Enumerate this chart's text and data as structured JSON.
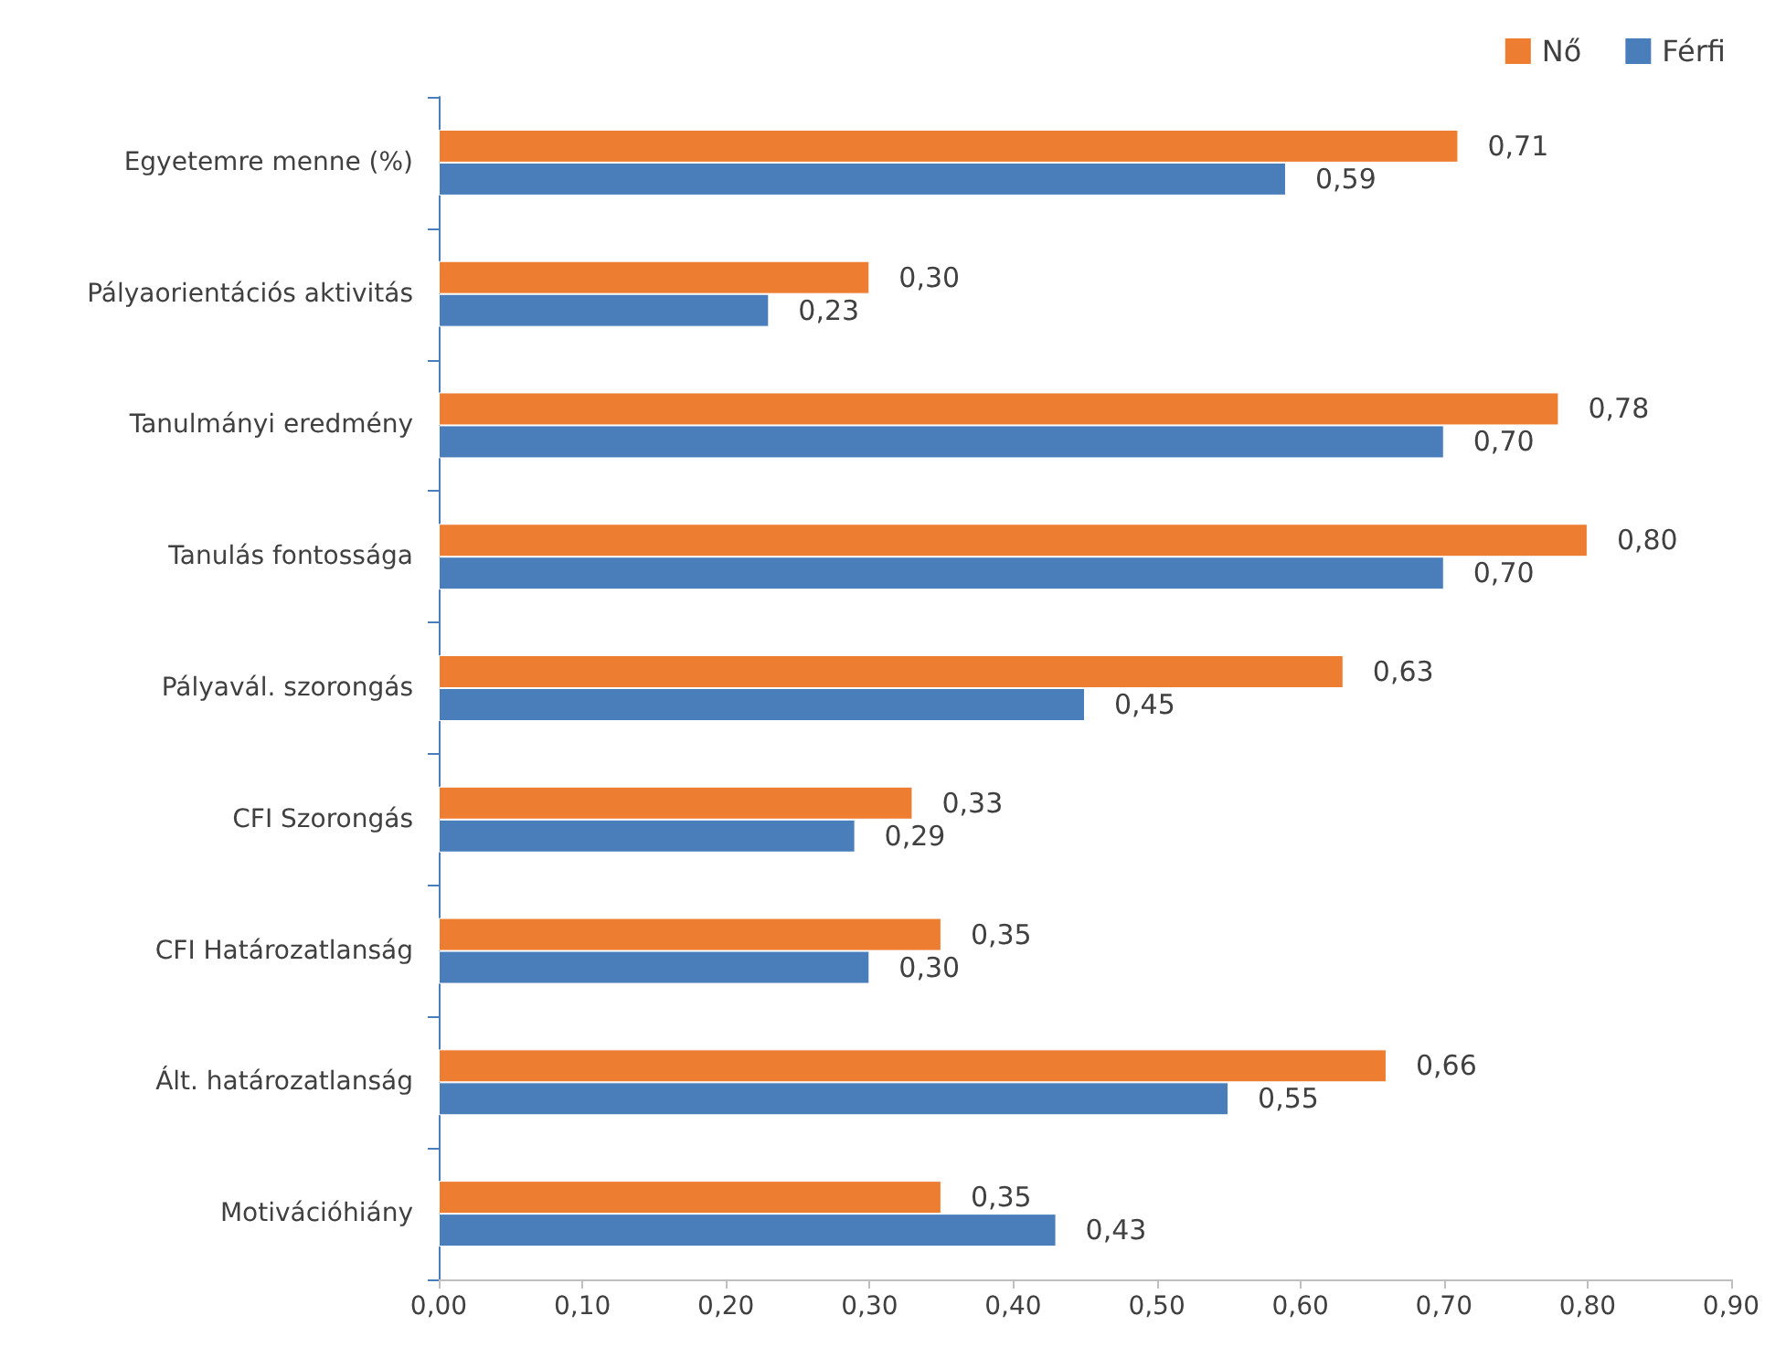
{
  "chart_data": {
    "type": "bar",
    "orientation": "horizontal",
    "categories": [
      "Egyetemre menne (%)",
      "Pályaorientációs aktivitás",
      "Tanulmányi eredmény",
      "Tanulás fontossága",
      "Pályavál. szorongás",
      "CFI Szorongás",
      "CFI Határozatlanság",
      "Ált. határozatlanság",
      "Motivációhiány"
    ],
    "series": [
      {
        "name": "Nő",
        "color": "#ed7d31",
        "values": [
          0.71,
          0.3,
          0.78,
          0.8,
          0.63,
          0.33,
          0.35,
          0.66,
          0.35
        ],
        "value_labels": [
          "0,71",
          "0,30",
          "0,78",
          "0,80",
          "0,63",
          "0,33",
          "0,35",
          "0,66",
          "0,35"
        ]
      },
      {
        "name": "Férfi",
        "color": "#4a7ebb",
        "values": [
          0.59,
          0.23,
          0.7,
          0.7,
          0.45,
          0.29,
          0.3,
          0.55,
          0.43
        ],
        "value_labels": [
          "0,59",
          "0,23",
          "0,70",
          "0,70",
          "0,45",
          "0,29",
          "0,30",
          "0,55",
          "0,43"
        ]
      }
    ],
    "xlim": [
      0,
      0.9
    ],
    "xticks": [
      {
        "value": 0,
        "label": "0,00"
      },
      {
        "value": 0.1,
        "label": "0,10"
      },
      {
        "value": 0.2,
        "label": "0,20"
      },
      {
        "value": 0.3,
        "label": "0,30"
      },
      {
        "value": 0.4,
        "label": "0,40"
      },
      {
        "value": 0.5,
        "label": "0,50"
      },
      {
        "value": 0.6,
        "label": "0,60"
      },
      {
        "value": 0.7,
        "label": "0,70"
      },
      {
        "value": 0.8,
        "label": "0,80"
      },
      {
        "value": 0.9,
        "label": "0,90"
      }
    ],
    "grid": false,
    "legend": "top right"
  }
}
